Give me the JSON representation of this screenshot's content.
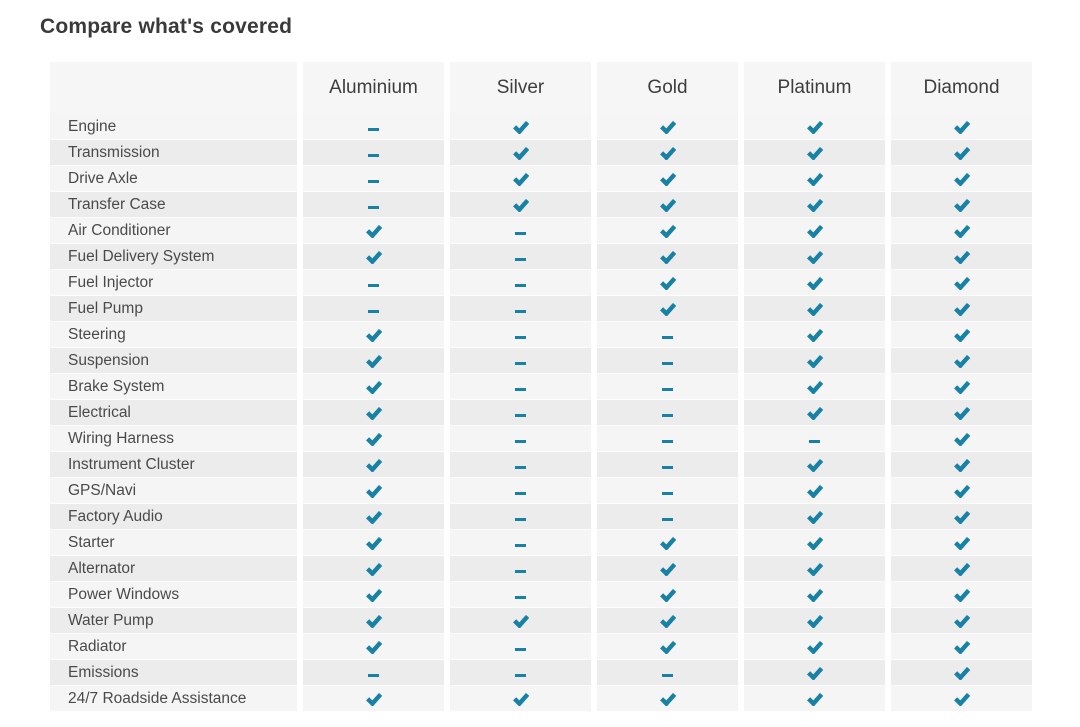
{
  "title": "Compare what's covered",
  "accent_color": "#1781a6",
  "icons": {
    "covered": "check-icon",
    "not_covered": "dash-icon"
  },
  "table": {
    "feature_column_header": "",
    "columns": [
      "Aluminium",
      "Silver",
      "Gold",
      "Platinum",
      "Diamond"
    ],
    "rows": [
      {
        "feature": "Engine",
        "covered": [
          false,
          true,
          true,
          true,
          true
        ]
      },
      {
        "feature": "Transmission",
        "covered": [
          false,
          true,
          true,
          true,
          true
        ]
      },
      {
        "feature": "Drive Axle",
        "covered": [
          false,
          true,
          true,
          true,
          true
        ]
      },
      {
        "feature": "Transfer Case",
        "covered": [
          false,
          true,
          true,
          true,
          true
        ]
      },
      {
        "feature": "Air Conditioner",
        "covered": [
          true,
          false,
          true,
          true,
          true
        ]
      },
      {
        "feature": "Fuel Delivery System",
        "covered": [
          true,
          false,
          true,
          true,
          true
        ]
      },
      {
        "feature": "Fuel Injector",
        "covered": [
          false,
          false,
          true,
          true,
          true
        ]
      },
      {
        "feature": "Fuel Pump",
        "covered": [
          false,
          false,
          true,
          true,
          true
        ]
      },
      {
        "feature": "Steering",
        "covered": [
          true,
          false,
          false,
          true,
          true
        ]
      },
      {
        "feature": "Suspension",
        "covered": [
          true,
          false,
          false,
          true,
          true
        ]
      },
      {
        "feature": "Brake System",
        "covered": [
          true,
          false,
          false,
          true,
          true
        ]
      },
      {
        "feature": "Electrical",
        "covered": [
          true,
          false,
          false,
          true,
          true
        ]
      },
      {
        "feature": "Wiring Harness",
        "covered": [
          true,
          false,
          false,
          false,
          true
        ]
      },
      {
        "feature": "Instrument Cluster",
        "covered": [
          true,
          false,
          false,
          true,
          true
        ]
      },
      {
        "feature": "GPS/Navi",
        "covered": [
          true,
          false,
          false,
          true,
          true
        ]
      },
      {
        "feature": "Factory Audio",
        "covered": [
          true,
          false,
          false,
          true,
          true
        ]
      },
      {
        "feature": "Starter",
        "covered": [
          true,
          false,
          true,
          true,
          true
        ]
      },
      {
        "feature": "Alternator",
        "covered": [
          true,
          false,
          true,
          true,
          true
        ]
      },
      {
        "feature": "Power Windows",
        "covered": [
          true,
          false,
          true,
          true,
          true
        ]
      },
      {
        "feature": "Water Pump",
        "covered": [
          true,
          true,
          true,
          true,
          true
        ]
      },
      {
        "feature": "Radiator",
        "covered": [
          true,
          false,
          true,
          true,
          true
        ]
      },
      {
        "feature": "Emissions",
        "covered": [
          false,
          false,
          false,
          true,
          true
        ]
      },
      {
        "feature": "24/7 Roadside Assistance",
        "covered": [
          true,
          true,
          true,
          true,
          true
        ]
      }
    ]
  }
}
